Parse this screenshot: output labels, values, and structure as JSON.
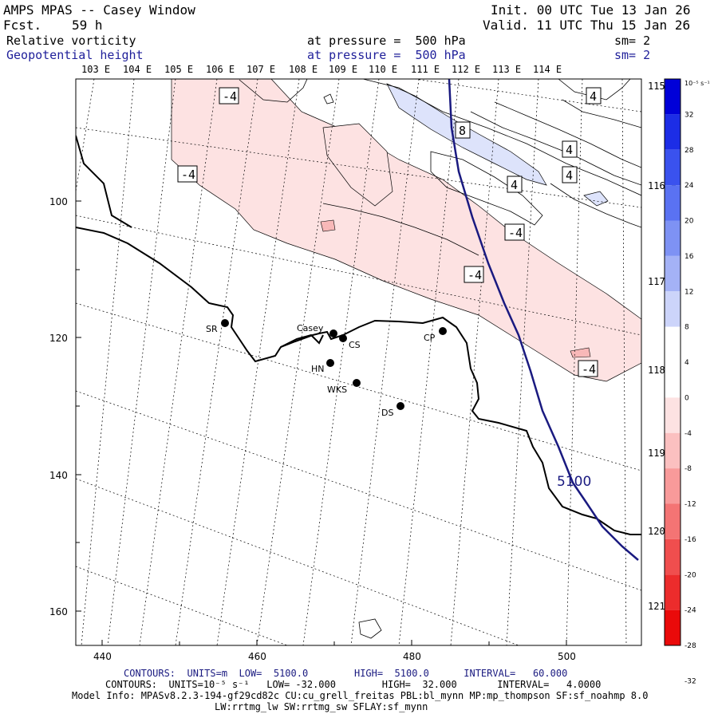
{
  "header": {
    "title": "AMPS MPAS -- Casey Window",
    "forecast_label": "Fcst.",
    "forecast_value": "59 h",
    "init": "Init. 00 UTC Tue 13 Jan 26",
    "valid": "Valid. 11 UTC Thu 15 Jan 26",
    "field1": {
      "name": "Relative vorticity",
      "level": "at pressure =  500 hPa",
      "sm": "sm= 2"
    },
    "field2": {
      "name": "Geopotential height",
      "level": "at pressure =  500 hPa",
      "sm": "sm= 2"
    }
  },
  "axes": {
    "top_lon": [
      "103 E",
      "104 E",
      "105 E",
      "106 E",
      "107 E",
      "108 E",
      "109 E",
      "110 E",
      "111 E",
      "112 E",
      "113 E",
      "114 E"
    ],
    "right_lon": [
      "115 E",
      "116 E",
      "117 E",
      "118 E",
      "119 E",
      "120 E",
      "121 E"
    ],
    "x_ticks": [
      "440",
      "460",
      "480",
      "500"
    ],
    "y_ticks": [
      "100",
      "120",
      "140",
      "160"
    ]
  },
  "colorbar": {
    "units": "10⁻⁵ s⁻¹",
    "labels": [
      "32",
      "28",
      "24",
      "20",
      "16",
      "12",
      "8",
      "4",
      "0",
      "-4",
      "-8",
      "-12",
      "-16",
      "-20",
      "-24",
      "-28",
      "-32"
    ],
    "colors": [
      "#0000d8",
      "#1c2de6",
      "#3a52ee",
      "#5a72f2",
      "#7e92f4",
      "#a4b2f6",
      "#ccd4fa",
      "#ffffff",
      "#ffffff",
      "#fde2e2",
      "#fbc0c0",
      "#f89a9a",
      "#f47474",
      "#f04e4e",
      "#ec2c2c",
      "#ea0a0a"
    ],
    "accent_height": "#1a1a80"
  },
  "stations": [
    {
      "id": "SR",
      "label": "SR"
    },
    {
      "id": "Casey",
      "label": "Casey"
    },
    {
      "id": "CS",
      "label": "CS"
    },
    {
      "id": "HN",
      "label": "HN"
    },
    {
      "id": "WKS",
      "label": "WKS"
    },
    {
      "id": "DS",
      "label": "DS"
    },
    {
      "id": "CP",
      "label": "CP"
    }
  ],
  "contour_labels": {
    "neg4": "-4",
    "pos4": "4",
    "pos8": "8",
    "height": "5100"
  },
  "footer": {
    "line1": "CONTOURS:  UNITS=m  LOW=  5100.0        HIGH=  5100.0      INTERVAL=   60.000",
    "line2": "CONTOURS:  UNITS=10⁻⁵ s⁻¹   LOW= -32.000        HIGH=  32.000       INTERVAL=   4.0000",
    "line3": "Model Info: MPASv8.2.3-194-gf29cd82c CU:cu_grell_freitas PBL:bl_mynn MP:mp_thompson SF:sf_noahmp 8.0",
    "line4": "LW:rrtmg_lw SW:rrtmg_sw SFLAY:sf_mynn"
  }
}
